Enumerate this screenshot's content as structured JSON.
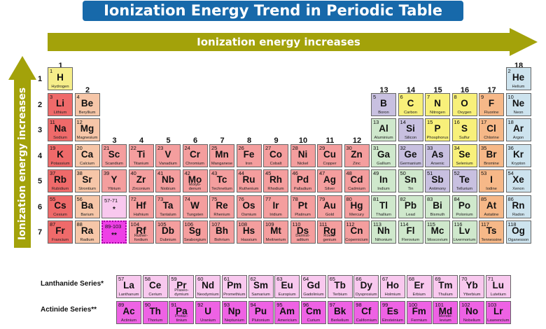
{
  "title": "Ionization Energy Trend in Periodic Table",
  "horizontal_arrow_label": "Ionization energy increases",
  "vertical_arrow_label": "Ionization energy increases",
  "groups": [
    "1",
    "2",
    "3",
    "4",
    "5",
    "6",
    "7",
    "8",
    "9",
    "10",
    "11",
    "12",
    "13",
    "14",
    "15",
    "16",
    "17",
    "18"
  ],
  "periods": [
    "1",
    "2",
    "3",
    "4",
    "5",
    "6",
    "7"
  ],
  "lanthanide_label": "Lanthanide Series*",
  "actinide_label": "Actinide Series**",
  "footnote": "",
  "colors": {
    "hydrogen": "#f6ee8a",
    "alkali": "#ef6a6a",
    "alkaline": "#f6c6a8",
    "transition": "#f49e9e",
    "metal": "#cfe8cc",
    "metalloid": "#c8c0e0",
    "nonmetal": "#f8f07a",
    "halogen": "#f6b888",
    "noble": "#cde3ee",
    "lanthanide": "#f8c8ee",
    "actinide": "#ee62e4",
    "placeholder_la": "#f8c8ee",
    "placeholder_ac": "#ee40e6"
  },
  "elements": [
    {
      "n": "1",
      "s": "H",
      "name": "Hydrogen",
      "r": 1,
      "c": 1,
      "cat": "hydrogen"
    },
    {
      "n": "2",
      "s": "He",
      "name": "Helium",
      "r": 1,
      "c": 18,
      "cat": "noble"
    },
    {
      "n": "3",
      "s": "Li",
      "name": "Lithium",
      "r": 2,
      "c": 1,
      "cat": "alkali"
    },
    {
      "n": "4",
      "s": "Be",
      "name": "Beryllium",
      "r": 2,
      "c": 2,
      "cat": "alkaline"
    },
    {
      "n": "5",
      "s": "B",
      "name": "Boron",
      "r": 2,
      "c": 13,
      "cat": "metalloid"
    },
    {
      "n": "6",
      "s": "C",
      "name": "Carbon",
      "r": 2,
      "c": 14,
      "cat": "nonmetal"
    },
    {
      "n": "7",
      "s": "N",
      "name": "Nitrogen",
      "r": 2,
      "c": 15,
      "cat": "nonmetal"
    },
    {
      "n": "8",
      "s": "O",
      "name": "Oxygen",
      "r": 2,
      "c": 16,
      "cat": "nonmetal"
    },
    {
      "n": "9",
      "s": "F",
      "name": "Fluorine",
      "r": 2,
      "c": 17,
      "cat": "halogen"
    },
    {
      "n": "10",
      "s": "Ne",
      "name": "Neon",
      "r": 2,
      "c": 18,
      "cat": "noble"
    },
    {
      "n": "11",
      "s": "Na",
      "name": "Sodium",
      "r": 3,
      "c": 1,
      "cat": "alkali"
    },
    {
      "n": "12",
      "s": "Mg",
      "name": "Magnesium",
      "r": 3,
      "c": 2,
      "cat": "alkaline"
    },
    {
      "n": "13",
      "s": "Al",
      "name": "Aluminium",
      "r": 3,
      "c": 13,
      "cat": "metal"
    },
    {
      "n": "14",
      "s": "Si",
      "name": "Silicon",
      "r": 3,
      "c": 14,
      "cat": "metalloid"
    },
    {
      "n": "15",
      "s": "P",
      "name": "Phosphorus",
      "r": 3,
      "c": 15,
      "cat": "nonmetal"
    },
    {
      "n": "16",
      "s": "S",
      "name": "Sulfur",
      "r": 3,
      "c": 16,
      "cat": "nonmetal"
    },
    {
      "n": "17",
      "s": "Cl",
      "name": "Chlorine",
      "r": 3,
      "c": 17,
      "cat": "halogen"
    },
    {
      "n": "18",
      "s": "Ar",
      "name": "Argon",
      "r": 3,
      "c": 18,
      "cat": "noble"
    },
    {
      "n": "19",
      "s": "K",
      "name": "Potassium",
      "r": 4,
      "c": 1,
      "cat": "alkali"
    },
    {
      "n": "20",
      "s": "Ca",
      "name": "Calcium",
      "r": 4,
      "c": 2,
      "cat": "alkaline"
    },
    {
      "n": "21",
      "s": "Sc",
      "name": "Scandium",
      "r": 4,
      "c": 3,
      "cat": "transition"
    },
    {
      "n": "22",
      "s": "Ti",
      "name": "Titanium",
      "r": 4,
      "c": 4,
      "cat": "transition"
    },
    {
      "n": "23",
      "s": "V",
      "name": "Vanadium",
      "r": 4,
      "c": 5,
      "cat": "transition"
    },
    {
      "n": "24",
      "s": "Cr",
      "name": "Chromium",
      "r": 4,
      "c": 6,
      "cat": "transition"
    },
    {
      "n": "25",
      "s": "Mn",
      "name": "Manganese",
      "r": 4,
      "c": 7,
      "cat": "transition"
    },
    {
      "n": "26",
      "s": "Fe",
      "name": "Iron",
      "r": 4,
      "c": 8,
      "cat": "transition"
    },
    {
      "n": "27",
      "s": "Co",
      "name": "Cobalt",
      "r": 4,
      "c": 9,
      "cat": "transition"
    },
    {
      "n": "28",
      "s": "Ni",
      "name": "Nickel",
      "r": 4,
      "c": 10,
      "cat": "transition"
    },
    {
      "n": "29",
      "s": "Cu",
      "name": "Copper",
      "r": 4,
      "c": 11,
      "cat": "transition"
    },
    {
      "n": "30",
      "s": "Zn",
      "name": "Zinc",
      "r": 4,
      "c": 12,
      "cat": "transition"
    },
    {
      "n": "31",
      "s": "Ga",
      "name": "Gallium",
      "r": 4,
      "c": 13,
      "cat": "metal"
    },
    {
      "n": "32",
      "s": "Ge",
      "name": "Germanium",
      "r": 4,
      "c": 14,
      "cat": "metalloid"
    },
    {
      "n": "33",
      "s": "As",
      "name": "Arsenic",
      "r": 4,
      "c": 15,
      "cat": "metalloid"
    },
    {
      "n": "34",
      "s": "Se",
      "name": "Selenium",
      "r": 4,
      "c": 16,
      "cat": "nonmetal"
    },
    {
      "n": "35",
      "s": "Br",
      "name": "Bromine",
      "r": 4,
      "c": 17,
      "cat": "halogen"
    },
    {
      "n": "36",
      "s": "Kr",
      "name": "Krypton",
      "r": 4,
      "c": 18,
      "cat": "noble"
    },
    {
      "n": "37",
      "s": "Rb",
      "name": "Rubidium",
      "r": 5,
      "c": 1,
      "cat": "alkali"
    },
    {
      "n": "38",
      "s": "Sr",
      "name": "Strontium",
      "r": 5,
      "c": 2,
      "cat": "alkaline"
    },
    {
      "n": "39",
      "s": "Y",
      "name": "Yttrium",
      "r": 5,
      "c": 3,
      "cat": "transition"
    },
    {
      "n": "40",
      "s": "Zr",
      "name": "Zirconium",
      "r": 5,
      "c": 4,
      "cat": "transition"
    },
    {
      "n": "41",
      "s": "Nb",
      "name": "Niobium",
      "r": 5,
      "c": 5,
      "cat": "transition"
    },
    {
      "n": "42",
      "s": "Mo",
      "name": "Molyb-denum",
      "r": 5,
      "c": 6,
      "cat": "transition"
    },
    {
      "n": "43",
      "s": "Tc",
      "name": "Technetium",
      "r": 5,
      "c": 7,
      "cat": "transition"
    },
    {
      "n": "44",
      "s": "Ru",
      "name": "Ruthenium",
      "r": 5,
      "c": 8,
      "cat": "transition"
    },
    {
      "n": "45",
      "s": "Rh",
      "name": "Rhodium",
      "r": 5,
      "c": 9,
      "cat": "transition"
    },
    {
      "n": "46",
      "s": "Pd",
      "name": "Palladium",
      "r": 5,
      "c": 10,
      "cat": "transition"
    },
    {
      "n": "47",
      "s": "Ag",
      "name": "Silver",
      "r": 5,
      "c": 11,
      "cat": "transition"
    },
    {
      "n": "48",
      "s": "Cd",
      "name": "Cadmium",
      "r": 5,
      "c": 12,
      "cat": "transition"
    },
    {
      "n": "49",
      "s": "In",
      "name": "Indium",
      "r": 5,
      "c": 13,
      "cat": "metal"
    },
    {
      "n": "50",
      "s": "Sn",
      "name": "Tin",
      "r": 5,
      "c": 14,
      "cat": "metal"
    },
    {
      "n": "51",
      "s": "Sb",
      "name": "Antimony",
      "r": 5,
      "c": 15,
      "cat": "metalloid"
    },
    {
      "n": "52",
      "s": "Te",
      "name": "Tellurium",
      "r": 5,
      "c": 16,
      "cat": "metalloid"
    },
    {
      "n": "53",
      "s": "I",
      "name": "Iodine",
      "r": 5,
      "c": 17,
      "cat": "halogen"
    },
    {
      "n": "54",
      "s": "Xe",
      "name": "Xenon",
      "r": 5,
      "c": 18,
      "cat": "noble"
    },
    {
      "n": "55",
      "s": "Cs",
      "name": "Cesium",
      "r": 6,
      "c": 1,
      "cat": "alkali"
    },
    {
      "n": "56",
      "s": "Ba",
      "name": "Barium",
      "r": 6,
      "c": 2,
      "cat": "alkaline"
    },
    {
      "n": "57-71",
      "s": "*",
      "name": "",
      "r": 6,
      "c": 3,
      "cat": "placeholder_la"
    },
    {
      "n": "72",
      "s": "Hf",
      "name": "Hafnium",
      "r": 6,
      "c": 4,
      "cat": "transition"
    },
    {
      "n": "73",
      "s": "Ta",
      "name": "Tantalum",
      "r": 6,
      "c": 5,
      "cat": "transition"
    },
    {
      "n": "74",
      "s": "W",
      "name": "Tungsten",
      "r": 6,
      "c": 6,
      "cat": "transition"
    },
    {
      "n": "75",
      "s": "Re",
      "name": "Rhenium",
      "r": 6,
      "c": 7,
      "cat": "transition"
    },
    {
      "n": "76",
      "s": "Os",
      "name": "Osmium",
      "r": 6,
      "c": 8,
      "cat": "transition"
    },
    {
      "n": "77",
      "s": "Ir",
      "name": "Iridium",
      "r": 6,
      "c": 9,
      "cat": "transition"
    },
    {
      "n": "78",
      "s": "Pt",
      "name": "Platinum",
      "r": 6,
      "c": 10,
      "cat": "transition"
    },
    {
      "n": "79",
      "s": "Au",
      "name": "Gold",
      "r": 6,
      "c": 11,
      "cat": "transition"
    },
    {
      "n": "80",
      "s": "Hg",
      "name": "Mercury",
      "r": 6,
      "c": 12,
      "cat": "transition"
    },
    {
      "n": "81",
      "s": "Tl",
      "name": "Thallium",
      "r": 6,
      "c": 13,
      "cat": "metal"
    },
    {
      "n": "82",
      "s": "Pb",
      "name": "Lead",
      "r": 6,
      "c": 14,
      "cat": "metal"
    },
    {
      "n": "83",
      "s": "Bi",
      "name": "Bismuth",
      "r": 6,
      "c": 15,
      "cat": "metal"
    },
    {
      "n": "84",
      "s": "Po",
      "name": "Polonium",
      "r": 6,
      "c": 16,
      "cat": "metal"
    },
    {
      "n": "85",
      "s": "At",
      "name": "Astatine",
      "r": 6,
      "c": 17,
      "cat": "halogen"
    },
    {
      "n": "86",
      "s": "Rn",
      "name": "Radon",
      "r": 6,
      "c": 18,
      "cat": "noble"
    },
    {
      "n": "87",
      "s": "Fr",
      "name": "Francium",
      "r": 7,
      "c": 1,
      "cat": "alkali"
    },
    {
      "n": "88",
      "s": "Ra",
      "name": "Radium",
      "r": 7,
      "c": 2,
      "cat": "alkaline"
    },
    {
      "n": "89-103",
      "s": "**",
      "name": "",
      "r": 7,
      "c": 3,
      "cat": "placeholder_ac"
    },
    {
      "n": "104",
      "s": "Rf",
      "name": "Ruther-fordium",
      "r": 7,
      "c": 4,
      "cat": "transition"
    },
    {
      "n": "105",
      "s": "Db",
      "name": "Dubnium",
      "r": 7,
      "c": 5,
      "cat": "transition"
    },
    {
      "n": "106",
      "s": "Sg",
      "name": "Seaborgium",
      "r": 7,
      "c": 6,
      "cat": "transition"
    },
    {
      "n": "107",
      "s": "Bh",
      "name": "Bohrium",
      "r": 7,
      "c": 7,
      "cat": "transition"
    },
    {
      "n": "108",
      "s": "Hs",
      "name": "Hassium",
      "r": 7,
      "c": 8,
      "cat": "transition"
    },
    {
      "n": "109",
      "s": "Mt",
      "name": "Meitnerium",
      "r": 7,
      "c": 9,
      "cat": "transition"
    },
    {
      "n": "110",
      "s": "Ds",
      "name": "Darmst-adtium",
      "r": 7,
      "c": 10,
      "cat": "transition"
    },
    {
      "n": "111",
      "s": "Rg",
      "name": "Roent-genium",
      "r": 7,
      "c": 11,
      "cat": "transition"
    },
    {
      "n": "112",
      "s": "Cn",
      "name": "Copernicium",
      "r": 7,
      "c": 12,
      "cat": "transition"
    },
    {
      "n": "113",
      "s": "Nh",
      "name": "Nihonium",
      "r": 7,
      "c": 13,
      "cat": "metal"
    },
    {
      "n": "114",
      "s": "Fl",
      "name": "Flerovium",
      "r": 7,
      "c": 14,
      "cat": "metal"
    },
    {
      "n": "115",
      "s": "Mc",
      "name": "Moscovium",
      "r": 7,
      "c": 15,
      "cat": "metal"
    },
    {
      "n": "116",
      "s": "Lv",
      "name": "Livermorium",
      "r": 7,
      "c": 16,
      "cat": "metal"
    },
    {
      "n": "117",
      "s": "Ts",
      "name": "Tennessine",
      "r": 7,
      "c": 17,
      "cat": "halogen"
    },
    {
      "n": "118",
      "s": "Og",
      "name": "Oganesson",
      "r": 7,
      "c": 18,
      "cat": "noble"
    }
  ],
  "lanthanides": [
    {
      "n": "57",
      "s": "La",
      "name": "Lanthanum"
    },
    {
      "n": "58",
      "s": "Ce",
      "name": "Cerium"
    },
    {
      "n": "59",
      "s": "Pr",
      "name": "Praseo-dymium"
    },
    {
      "n": "60",
      "s": "Nd",
      "name": "Neodymium"
    },
    {
      "n": "61",
      "s": "Pm",
      "name": "Promethium"
    },
    {
      "n": "62",
      "s": "Sm",
      "name": "Samarium"
    },
    {
      "n": "63",
      "s": "Eu",
      "name": "Europium"
    },
    {
      "n": "64",
      "s": "Gd",
      "name": "Gadolinium"
    },
    {
      "n": "65",
      "s": "Tb",
      "name": "Terbium"
    },
    {
      "n": "66",
      "s": "Dy",
      "name": "Dysprosium"
    },
    {
      "n": "67",
      "s": "Ho",
      "name": "Holmium"
    },
    {
      "n": "68",
      "s": "Er",
      "name": "Erbium"
    },
    {
      "n": "69",
      "s": "Tm",
      "name": "Thulium"
    },
    {
      "n": "70",
      "s": "Yb",
      "name": "Ytterbium"
    },
    {
      "n": "71",
      "s": "Lu",
      "name": "Lutetium"
    }
  ],
  "actinides": [
    {
      "n": "89",
      "s": "Ac",
      "name": "Actinium"
    },
    {
      "n": "90",
      "s": "Th",
      "name": "Thorium"
    },
    {
      "n": "91",
      "s": "Pa",
      "name": "Protac-tinium"
    },
    {
      "n": "92",
      "s": "U",
      "name": "Uranium"
    },
    {
      "n": "93",
      "s": "Np",
      "name": "Neptunium"
    },
    {
      "n": "94",
      "s": "Pu",
      "name": "Plutonium"
    },
    {
      "n": "95",
      "s": "Am",
      "name": "Americium"
    },
    {
      "n": "96",
      "s": "Cm",
      "name": "Curium"
    },
    {
      "n": "97",
      "s": "Bk",
      "name": "Berkelium"
    },
    {
      "n": "98",
      "s": "Cf",
      "name": "Californium"
    },
    {
      "n": "99",
      "s": "Es",
      "name": "Einsteinium"
    },
    {
      "n": "100",
      "s": "Fm",
      "name": "Fermium"
    },
    {
      "n": "101",
      "s": "Md",
      "name": "Mende-levium"
    },
    {
      "n": "102",
      "s": "No",
      "name": "Nobelium"
    },
    {
      "n": "103",
      "s": "Lr",
      "name": "Lawrencium"
    }
  ]
}
